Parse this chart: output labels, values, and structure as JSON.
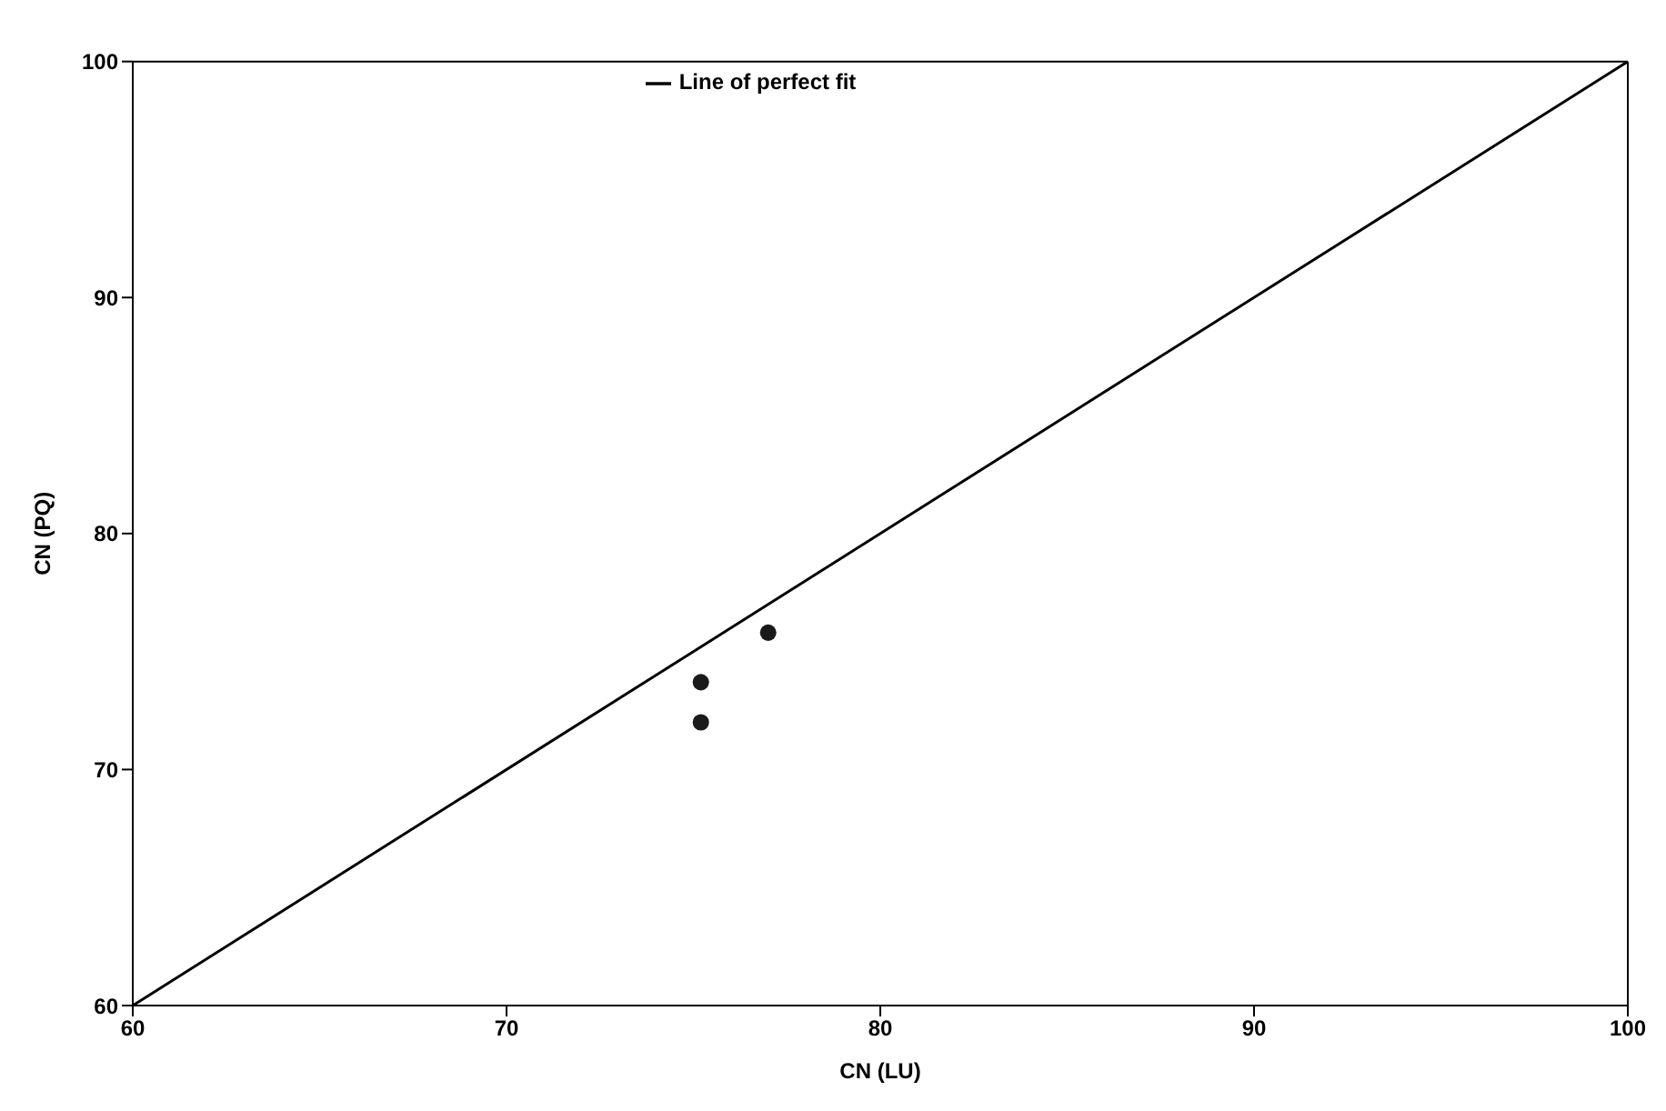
{
  "chart_data": {
    "type": "scatter",
    "xlabel": "CN (LU)",
    "ylabel": "CN (PQ)",
    "xlim": [
      60,
      100
    ],
    "ylim": [
      60,
      100
    ],
    "xticks": [
      60,
      70,
      80,
      90,
      100
    ],
    "yticks": [
      60,
      70,
      80,
      90,
      100
    ],
    "grid": false,
    "legend": "top",
    "marker": "circle",
    "series": [
      {
        "name": "Line of perfect fit",
        "type": "line",
        "color": "#000000",
        "x": [
          60,
          100
        ],
        "values": [
          60,
          100
        ],
        "marker": "none",
        "line_style": "solid"
      },
      {
        "color": "#1a1a1a",
        "x": [
          75.2,
          75.2,
          77.0
        ],
        "values": [
          73.7,
          72.0,
          75.8
        ]
      }
    ]
  }
}
